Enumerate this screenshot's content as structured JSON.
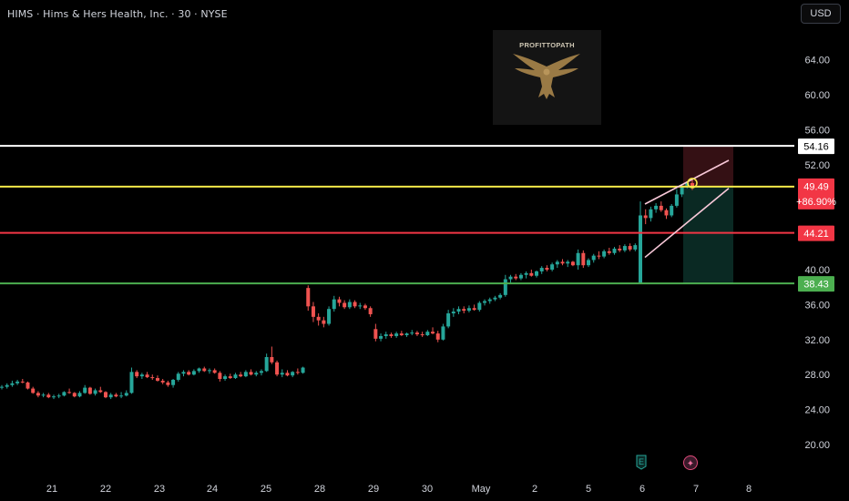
{
  "header": {
    "title": "HIMS · Hims & Hers Health, Inc. · 30 · NYSE"
  },
  "currency_button": "USD",
  "watermark": {
    "name": "PROFITTOPATH"
  },
  "colors": {
    "up": "#26a69a",
    "down": "#ef5350",
    "background": "#000000",
    "white_line": "#ffffff",
    "yellow_line": "#f5e94a",
    "red_line": "#f23645",
    "green_line": "#4caf50",
    "wedge": "#f8c8d8"
  },
  "chart_data": {
    "type": "candlestick",
    "ylim": [
      17.5,
      67.5
    ],
    "y_ticks": [
      "20.00",
      "24.00",
      "28.00",
      "32.00",
      "36.00",
      "40.00",
      "52.00",
      "56.00",
      "60.00",
      "64.00"
    ],
    "x_ticks": [
      "21",
      "22",
      "23",
      "24",
      "25",
      "28",
      "29",
      "30",
      "May",
      "2",
      "5",
      "6",
      "7",
      "8"
    ],
    "horizontal_lines": [
      {
        "price": 54.16,
        "label": "54.16",
        "color": "#ffffff"
      },
      {
        "price": 49.49,
        "label": "49.49",
        "sublabel": "+86.90%",
        "color": "#f5e94a"
      },
      {
        "price": 44.21,
        "label": "44.21",
        "color": "#f23645"
      },
      {
        "price": 38.43,
        "label": "38.43",
        "color": "#4caf50"
      }
    ],
    "position_box": {
      "entry": 49.49,
      "stop": 54.16,
      "target": 38.43,
      "start_session": "6",
      "end_session": "7"
    },
    "rising_wedge": {
      "upper": [
        [
          47.5,
          49.3
        ],
        [
          52.5,
          52.3
        ]
      ],
      "lower": [
        [
          41.4,
          43.0
        ],
        [
          49.3,
          52.3
        ]
      ]
    },
    "candles": [
      [
        26.5,
        26.8,
        26.3,
        26.6
      ],
      [
        26.6,
        27.0,
        26.4,
        26.8
      ],
      [
        26.8,
        27.3,
        26.6,
        27.0
      ],
      [
        27.0,
        27.4,
        26.8,
        27.2
      ],
      [
        27.2,
        27.5,
        27.0,
        27.1
      ],
      [
        27.1,
        27.2,
        26.3,
        26.4
      ],
      [
        26.4,
        26.6,
        25.8,
        25.9
      ],
      [
        25.9,
        26.1,
        25.4,
        25.6
      ],
      [
        25.6,
        25.9,
        25.4,
        25.7
      ],
      [
        25.7,
        25.9,
        25.3,
        25.4
      ],
      [
        25.4,
        25.7,
        25.2,
        25.5
      ],
      [
        25.5,
        25.8,
        25.3,
        25.6
      ],
      [
        25.6,
        26.1,
        25.5,
        26.0
      ],
      [
        26.0,
        26.4,
        25.8,
        25.9
      ],
      [
        25.9,
        26.0,
        25.4,
        25.5
      ],
      [
        25.5,
        26.1,
        25.4,
        25.9
      ],
      [
        25.9,
        26.8,
        25.8,
        26.5
      ],
      [
        26.5,
        26.6,
        25.7,
        25.8
      ],
      [
        25.8,
        26.4,
        25.6,
        26.2
      ],
      [
        26.2,
        26.6,
        25.9,
        26.0
      ],
      [
        26.0,
        26.1,
        25.3,
        25.4
      ],
      [
        25.4,
        25.9,
        25.2,
        25.7
      ],
      [
        25.7,
        25.9,
        25.4,
        25.5
      ],
      [
        25.5,
        26.0,
        25.3,
        25.6
      ],
      [
        25.6,
        26.2,
        25.5,
        25.9
      ],
      [
        25.9,
        28.8,
        25.8,
        28.3
      ],
      [
        28.3,
        28.5,
        27.6,
        27.8
      ],
      [
        27.8,
        28.2,
        27.5,
        28.0
      ],
      [
        28.0,
        28.3,
        27.6,
        27.7
      ],
      [
        27.7,
        28.0,
        27.4,
        27.6
      ],
      [
        27.6,
        27.9,
        27.2,
        27.3
      ],
      [
        27.3,
        27.5,
        26.9,
        27.1
      ],
      [
        27.1,
        27.3,
        26.6,
        26.8
      ],
      [
        26.8,
        27.5,
        26.5,
        27.4
      ],
      [
        27.4,
        28.3,
        27.2,
        28.1
      ],
      [
        28.1,
        28.5,
        27.8,
        28.3
      ],
      [
        28.3,
        28.5,
        27.9,
        28.0
      ],
      [
        28.0,
        28.6,
        27.9,
        28.4
      ],
      [
        28.4,
        28.8,
        28.2,
        28.7
      ],
      [
        28.7,
        28.9,
        28.3,
        28.4
      ],
      [
        28.4,
        28.7,
        28.1,
        28.5
      ],
      [
        28.5,
        28.7,
        28.1,
        28.2
      ],
      [
        28.2,
        28.4,
        27.2,
        27.5
      ],
      [
        27.5,
        28.0,
        27.3,
        27.8
      ],
      [
        27.8,
        28.1,
        27.5,
        27.6
      ],
      [
        27.6,
        28.2,
        27.5,
        28.0
      ],
      [
        28.0,
        28.3,
        27.7,
        27.8
      ],
      [
        27.8,
        28.5,
        27.7,
        28.3
      ],
      [
        28.3,
        28.6,
        27.9,
        28.0
      ],
      [
        28.0,
        28.4,
        27.8,
        28.2
      ],
      [
        28.2,
        28.6,
        27.9,
        28.4
      ],
      [
        28.4,
        30.4,
        28.3,
        30.0
      ],
      [
        30.0,
        31.2,
        29.2,
        29.4
      ],
      [
        29.4,
        29.6,
        27.8,
        28.0
      ],
      [
        28.0,
        28.6,
        27.7,
        28.2
      ],
      [
        28.2,
        28.5,
        27.8,
        27.9
      ],
      [
        27.9,
        28.4,
        27.7,
        28.3
      ],
      [
        28.3,
        28.7,
        28.0,
        28.2
      ],
      [
        28.2,
        28.9,
        28.1,
        28.8
      ],
      [
        37.9,
        38.2,
        35.3,
        35.8
      ],
      [
        35.8,
        36.3,
        34.0,
        34.6
      ],
      [
        34.6,
        35.0,
        33.6,
        34.2
      ],
      [
        34.2,
        34.6,
        33.4,
        33.8
      ],
      [
        33.8,
        35.8,
        33.6,
        35.5
      ],
      [
        35.5,
        37.0,
        35.2,
        36.6
      ],
      [
        36.6,
        36.9,
        35.8,
        36.2
      ],
      [
        36.2,
        36.5,
        35.5,
        35.7
      ],
      [
        35.7,
        36.6,
        35.5,
        36.3
      ],
      [
        36.3,
        36.5,
        35.6,
        35.8
      ],
      [
        35.8,
        36.2,
        35.5,
        35.9
      ],
      [
        35.9,
        36.1,
        35.4,
        35.6
      ],
      [
        35.6,
        35.8,
        34.6,
        34.9
      ],
      [
        33.2,
        33.8,
        31.8,
        32.1
      ],
      [
        32.1,
        32.7,
        31.8,
        32.4
      ],
      [
        32.4,
        32.9,
        32.1,
        32.6
      ],
      [
        32.6,
        32.8,
        32.2,
        32.4
      ],
      [
        32.4,
        32.9,
        32.2,
        32.7
      ],
      [
        32.7,
        33.0,
        32.4,
        32.5
      ],
      [
        32.5,
        32.8,
        32.3,
        32.7
      ],
      [
        32.7,
        33.1,
        32.5,
        32.8
      ],
      [
        32.8,
        33.0,
        32.4,
        32.6
      ],
      [
        32.6,
        32.9,
        32.3,
        32.5
      ],
      [
        32.5,
        33.1,
        32.4,
        32.9
      ],
      [
        32.9,
        33.4,
        32.6,
        32.7
      ],
      [
        32.7,
        33.0,
        31.7,
        32.0
      ],
      [
        32.0,
        33.8,
        31.9,
        33.5
      ],
      [
        33.5,
        35.4,
        33.3,
        35.0
      ],
      [
        35.0,
        35.6,
        34.6,
        35.2
      ],
      [
        35.2,
        35.8,
        34.9,
        35.5
      ],
      [
        35.5,
        35.8,
        35.0,
        35.3
      ],
      [
        35.3,
        35.9,
        35.1,
        35.6
      ],
      [
        35.6,
        36.0,
        35.3,
        35.4
      ],
      [
        35.4,
        36.4,
        35.2,
        36.2
      ],
      [
        36.2,
        36.6,
        35.9,
        36.4
      ],
      [
        36.4,
        36.8,
        36.1,
        36.6
      ],
      [
        36.6,
        37.0,
        36.4,
        36.8
      ],
      [
        36.8,
        37.3,
        36.6,
        37.1
      ],
      [
        37.1,
        39.4,
        36.9,
        38.9
      ],
      [
        38.9,
        39.4,
        38.5,
        39.2
      ],
      [
        39.2,
        39.5,
        38.8,
        39.0
      ],
      [
        39.0,
        39.6,
        38.8,
        39.4
      ],
      [
        39.4,
        39.8,
        39.0,
        39.6
      ],
      [
        39.6,
        40.0,
        39.2,
        39.3
      ],
      [
        39.3,
        39.9,
        39.1,
        39.8
      ],
      [
        39.8,
        40.4,
        39.5,
        40.2
      ],
      [
        40.2,
        40.5,
        39.8,
        40.0
      ],
      [
        40.0,
        40.8,
        39.8,
        40.6
      ],
      [
        40.6,
        41.1,
        40.2,
        40.9
      ],
      [
        40.9,
        41.2,
        40.5,
        40.7
      ],
      [
        40.7,
        41.1,
        40.3,
        40.9
      ],
      [
        40.9,
        41.0,
        40.4,
        40.5
      ],
      [
        40.5,
        42.3,
        40.0,
        41.9
      ],
      [
        41.9,
        42.2,
        40.2,
        40.5
      ],
      [
        40.5,
        41.3,
        40.3,
        41.1
      ],
      [
        41.1,
        41.8,
        40.8,
        41.6
      ],
      [
        41.6,
        42.1,
        41.2,
        41.5
      ],
      [
        41.5,
        42.3,
        41.3,
        42.1
      ],
      [
        42.1,
        42.5,
        41.7,
        41.9
      ],
      [
        41.9,
        42.6,
        41.7,
        42.4
      ],
      [
        42.4,
        42.8,
        42.0,
        42.2
      ],
      [
        42.2,
        42.9,
        42.0,
        42.7
      ],
      [
        42.7,
        43.0,
        42.1,
        42.3
      ],
      [
        42.3,
        43.0,
        42.1,
        42.8
      ],
      [
        38.5,
        47.8,
        38.4,
        46.2
      ],
      [
        46.2,
        46.9,
        45.2,
        45.9
      ],
      [
        45.9,
        47.2,
        45.5,
        46.9
      ],
      [
        46.9,
        47.6,
        46.5,
        47.3
      ],
      [
        47.3,
        47.8,
        46.6,
        46.8
      ],
      [
        46.8,
        47.0,
        45.8,
        46.2
      ],
      [
        46.2,
        47.5,
        46.0,
        47.3
      ],
      [
        47.3,
        49.2,
        47.1,
        48.6
      ],
      [
        48.6,
        49.8,
        48.3,
        49.6
      ],
      [
        49.6,
        50.1,
        49.3,
        49.9
      ],
      [
        49.9,
        50.3,
        49.1,
        49.49
      ]
    ],
    "session_breaks": [
      59,
      72,
      97,
      123
    ]
  },
  "markers": {
    "earnings": "E",
    "dividend": "✦"
  }
}
